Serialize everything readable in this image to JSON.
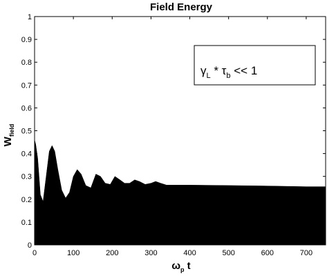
{
  "chart_data": {
    "type": "line",
    "title": "Field Energy",
    "xlabel": {
      "main": "ω",
      "sub": "p",
      "suffix": " t"
    },
    "ylabel": {
      "main": "W",
      "sub": "field"
    },
    "xlim": [
      0,
      750
    ],
    "ylim": [
      0,
      1
    ],
    "xticks": [
      0,
      100,
      200,
      300,
      400,
      500,
      600,
      700
    ],
    "yticks": [
      0,
      0.1,
      0.2,
      0.3,
      0.4,
      0.5,
      0.6,
      0.7,
      0.8,
      0.9,
      1
    ],
    "xtick_labels": [
      "0",
      "100",
      "200",
      "300",
      "400",
      "500",
      "600",
      "700"
    ],
    "ytick_labels": [
      "0",
      "0.1",
      "0.2",
      "0.3",
      "0.4",
      "0.5",
      "0.6",
      "0.7",
      "0.8",
      "0.9",
      "1"
    ],
    "grid": false,
    "series_color": "#000000",
    "envelope": {
      "upper": [
        [
          0,
          0.46
        ],
        [
          3,
          0.44
        ],
        [
          8,
          0.38
        ],
        [
          15,
          0.22
        ],
        [
          22,
          0.19
        ],
        [
          30,
          0.3
        ],
        [
          38,
          0.41
        ],
        [
          45,
          0.435
        ],
        [
          52,
          0.41
        ],
        [
          60,
          0.33
        ],
        [
          70,
          0.24
        ],
        [
          80,
          0.205
        ],
        [
          90,
          0.23
        ],
        [
          100,
          0.3
        ],
        [
          110,
          0.33
        ],
        [
          120,
          0.31
        ],
        [
          132,
          0.26
        ],
        [
          145,
          0.25
        ],
        [
          158,
          0.31
        ],
        [
          170,
          0.3
        ],
        [
          182,
          0.27
        ],
        [
          195,
          0.265
        ],
        [
          207,
          0.3
        ],
        [
          220,
          0.285
        ],
        [
          232,
          0.27
        ],
        [
          245,
          0.27
        ],
        [
          258,
          0.285
        ],
        [
          270,
          0.278
        ],
        [
          285,
          0.265
        ],
        [
          300,
          0.27
        ],
        [
          312,
          0.278
        ],
        [
          325,
          0.27
        ],
        [
          340,
          0.262
        ],
        [
          360,
          0.262
        ],
        [
          400,
          0.262
        ],
        [
          500,
          0.26
        ],
        [
          600,
          0.258
        ],
        [
          700,
          0.255
        ],
        [
          750,
          0.255
        ]
      ],
      "lower": [
        [
          0,
          0.0
        ],
        [
          750,
          0.0
        ]
      ]
    },
    "annotation": {
      "text1": "γ",
      "sub1": "L",
      "text2": " * τ",
      "sub2": "b",
      "text3": " << 1"
    }
  }
}
